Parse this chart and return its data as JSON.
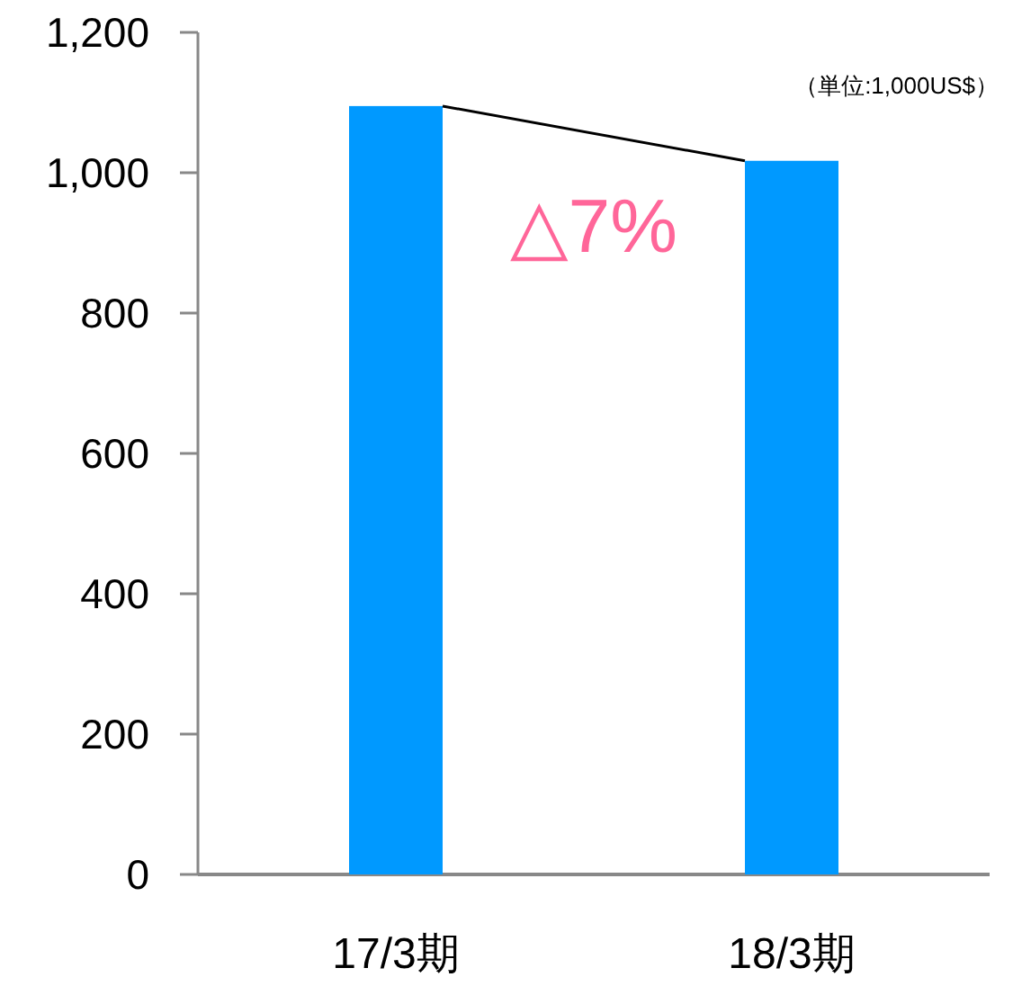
{
  "chart_data": {
    "type": "bar",
    "categories": [
      "17/3期",
      "18/3期"
    ],
    "series": [
      {
        "color": "#0099ff",
        "values": [
          1095,
          1017
        ]
      }
    ],
    "ylim": [
      0,
      1200
    ],
    "yticks": [
      {
        "value": 0,
        "label": "0"
      },
      {
        "value": 200,
        "label": "200"
      },
      {
        "value": 400,
        "label": "400"
      },
      {
        "value": 600,
        "label": "600"
      },
      {
        "value": 800,
        "label": "800"
      },
      {
        "value": 1000,
        "label": "1,000"
      },
      {
        "value": 1200,
        "label": "1,200"
      }
    ],
    "annotations": [
      "（単位:1,000US$）",
      "△7%"
    ],
    "grid": false
  }
}
